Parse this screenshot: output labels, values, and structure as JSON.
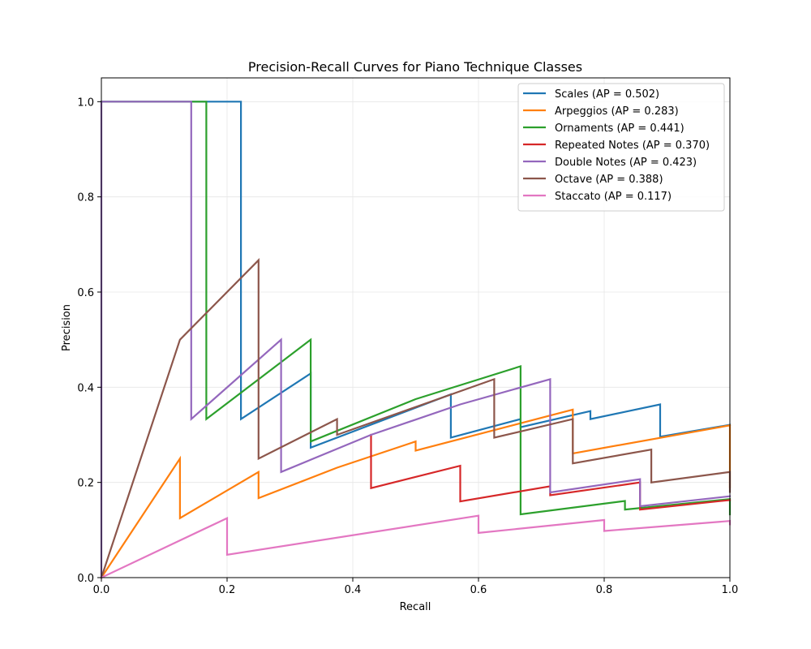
{
  "chart_data": {
    "type": "line",
    "title": "Precision-Recall Curves for Piano Technique Classes",
    "xlabel": "Recall",
    "ylabel": "Precision",
    "xlim": [
      0,
      1
    ],
    "ylim": [
      0,
      1.05
    ],
    "xticks": [
      "0.0",
      "0.2",
      "0.4",
      "0.6",
      "0.8",
      "1.0"
    ],
    "yticks": [
      "0.0",
      "0.2",
      "0.4",
      "0.6",
      "0.8",
      "1.0"
    ],
    "grid": true,
    "legend_position": "top-right",
    "series": [
      {
        "name": "Scales (AP = 0.502)",
        "color": "#1f77b4",
        "points": [
          [
            0,
            1.0
          ],
          [
            0.222,
            1.0
          ],
          [
            0.222,
            0.333
          ],
          [
            0.333,
            0.429
          ],
          [
            0.333,
            0.273
          ],
          [
            0.556,
            0.385
          ],
          [
            0.556,
            0.294
          ],
          [
            0.667,
            0.333
          ],
          [
            0.667,
            0.316
          ],
          [
            0.778,
            0.35
          ],
          [
            0.778,
            0.333
          ],
          [
            0.889,
            0.364
          ],
          [
            0.889,
            0.296
          ],
          [
            1.0,
            0.321
          ]
        ]
      },
      {
        "name": "Arpeggios (AP = 0.283)",
        "color": "#ff7f0e",
        "points": [
          [
            0,
            0
          ],
          [
            0.125,
            0.25
          ],
          [
            0.125,
            0.125
          ],
          [
            0.25,
            0.222
          ],
          [
            0.25,
            0.167
          ],
          [
            0.375,
            0.231
          ],
          [
            0.5,
            0.286
          ],
          [
            0.5,
            0.267
          ],
          [
            0.75,
            0.353
          ],
          [
            0.75,
            0.261
          ],
          [
            1.0,
            0.32
          ],
          [
            1.0,
            0.19
          ]
        ]
      },
      {
        "name": "Ornaments (AP = 0.441)",
        "color": "#2ca02c",
        "points": [
          [
            0,
            1.0
          ],
          [
            0.167,
            1.0
          ],
          [
            0.167,
            0.333
          ],
          [
            0.333,
            0.5
          ],
          [
            0.333,
            0.286
          ],
          [
            0.5,
            0.375
          ],
          [
            0.667,
            0.444
          ],
          [
            0.667,
            0.133
          ],
          [
            0.833,
            0.161
          ],
          [
            0.833,
            0.143
          ],
          [
            1.0,
            0.165
          ],
          [
            1.0,
            0.133
          ]
        ]
      },
      {
        "name": "Repeated Notes (AP = 0.370)",
        "color": "#d62728",
        "points": [
          [
            0.429,
            0.3
          ],
          [
            0.429,
            0.188
          ],
          [
            0.571,
            0.235
          ],
          [
            0.571,
            0.16
          ],
          [
            0.714,
            0.192
          ],
          [
            0.714,
            0.173
          ],
          [
            0.857,
            0.2
          ],
          [
            0.857,
            0.143
          ],
          [
            1.0,
            0.163
          ]
        ]
      },
      {
        "name": "Double Notes (AP = 0.423)",
        "color": "#9467bd",
        "points": [
          [
            0,
            0
          ],
          [
            0,
            1.0
          ],
          [
            0.143,
            1.0
          ],
          [
            0.143,
            0.333
          ],
          [
            0.286,
            0.5
          ],
          [
            0.286,
            0.222
          ],
          [
            0.429,
            0.3
          ],
          [
            0.571,
            0.364
          ],
          [
            0.714,
            0.417
          ],
          [
            0.714,
            0.179
          ],
          [
            0.857,
            0.207
          ],
          [
            0.857,
            0.15
          ],
          [
            1.0,
            0.171
          ]
        ]
      },
      {
        "name": "Octave (AP = 0.388)",
        "color": "#8c564b",
        "points": [
          [
            0,
            0
          ],
          [
            0.125,
            0.5
          ],
          [
            0.25,
            0.667
          ],
          [
            0.25,
            0.25
          ],
          [
            0.375,
            0.333
          ],
          [
            0.375,
            0.3
          ],
          [
            0.625,
            0.417
          ],
          [
            0.625,
            0.294
          ],
          [
            0.75,
            0.333
          ],
          [
            0.75,
            0.24
          ],
          [
            0.875,
            0.269
          ],
          [
            0.875,
            0.2
          ],
          [
            1.0,
            0.222
          ],
          [
            1.0,
            0.18
          ]
        ]
      },
      {
        "name": "Staccato (AP = 0.117)",
        "color": "#e377c2",
        "points": [
          [
            0,
            0
          ],
          [
            0.2,
            0.125
          ],
          [
            0.2,
            0.048
          ],
          [
            0.6,
            0.13
          ],
          [
            0.6,
            0.094
          ],
          [
            0.8,
            0.121
          ],
          [
            0.8,
            0.098
          ],
          [
            1.0,
            0.119
          ],
          [
            1.0,
            0.112
          ]
        ]
      }
    ]
  }
}
